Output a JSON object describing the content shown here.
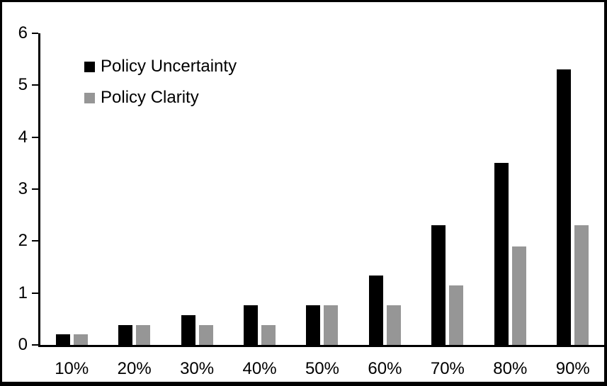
{
  "chart": {
    "background_color": "#ffffff",
    "frame_color": "#000000",
    "axis_color": "#000000",
    "text_color": "#000000"
  },
  "chart_data": {
    "type": "bar",
    "title": "",
    "xlabel": "",
    "ylabel": "",
    "categories": [
      "10%",
      "20%",
      "30%",
      "40%",
      "50%",
      "60%",
      "70%",
      "80%",
      "90%"
    ],
    "series": [
      {
        "name": "Policy Uncertainty",
        "color": "#000000",
        "values": [
          0.2,
          0.38,
          0.57,
          0.77,
          0.77,
          1.33,
          2.3,
          3.5,
          5.3
        ]
      },
      {
        "name": "Policy Clarity",
        "color": "#969696",
        "values": [
          0.2,
          0.38,
          0.38,
          0.38,
          0.77,
          0.77,
          1.15,
          1.9,
          2.3
        ]
      }
    ],
    "ylim": [
      0,
      6
    ],
    "yticks": [
      0,
      1,
      2,
      3,
      4,
      5,
      6
    ],
    "legend_position": "top-left",
    "grid": false
  }
}
